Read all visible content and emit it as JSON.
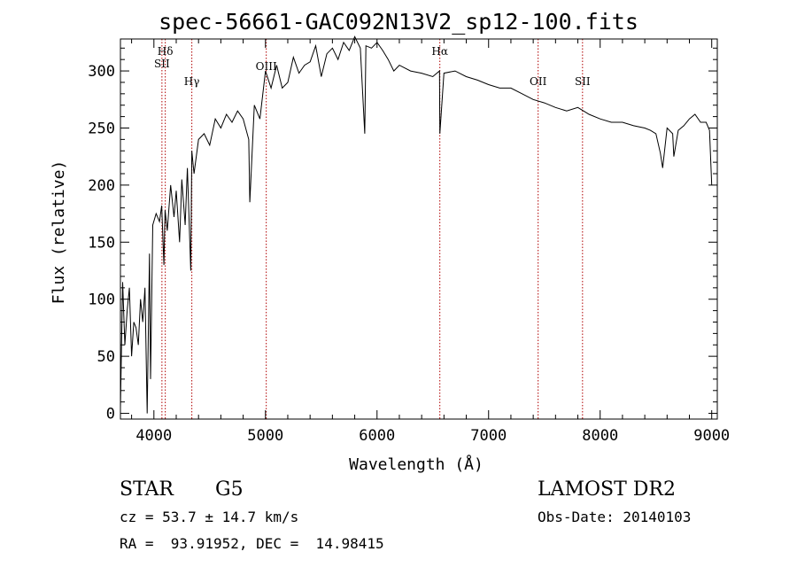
{
  "chart_data": {
    "type": "line",
    "title": "spec-56661-GAC092N13V2_sp12-100.fits",
    "xlabel": "Wavelength (Å)",
    "ylabel": "Flux (relative)",
    "xlim": [
      3700,
      9050
    ],
    "ylim": [
      -5,
      328
    ],
    "x_ticks": [
      4000,
      5000,
      6000,
      7000,
      8000,
      9000
    ],
    "y_ticks": [
      0,
      50,
      100,
      150,
      200,
      250,
      300
    ],
    "grid": false,
    "series": [
      {
        "x": [
          3700,
          3720,
          3740,
          3760,
          3780,
          3800,
          3820,
          3840,
          3860,
          3880,
          3900,
          3920,
          3940,
          3960,
          3970,
          3990,
          4020,
          4050,
          4070,
          4090,
          4100,
          4120,
          4150,
          4180,
          4200,
          4230,
          4250,
          4280,
          4300,
          4330,
          4340,
          4360,
          4400,
          4450,
          4500,
          4550,
          4600,
          4650,
          4700,
          4750,
          4800,
          4850,
          4860,
          4900,
          4950,
          5000,
          5050,
          5100,
          5150,
          5200,
          5250,
          5300,
          5350,
          5400,
          5450,
          5500,
          5550,
          5600,
          5650,
          5700,
          5750,
          5800,
          5850,
          5890,
          5900,
          5950,
          6000,
          6050,
          6100,
          6150,
          6200,
          6300,
          6400,
          6500,
          6560,
          6563,
          6600,
          6700,
          6800,
          6900,
          7000,
          7100,
          7200,
          7300,
          7400,
          7500,
          7600,
          7700,
          7800,
          7900,
          8000,
          8100,
          8200,
          8300,
          8400,
          8450,
          8500,
          8540,
          8560,
          8600,
          8650,
          8660,
          8700,
          8750,
          8800,
          8850,
          8900,
          8950,
          8980,
          9000
        ],
        "y": [
          5,
          115,
          60,
          90,
          110,
          50,
          80,
          75,
          60,
          100,
          80,
          110,
          0,
          140,
          30,
          165,
          175,
          168,
          182,
          130,
          178,
          160,
          200,
          172,
          195,
          150,
          205,
          165,
          215,
          125,
          230,
          210,
          240,
          245,
          235,
          258,
          250,
          262,
          255,
          265,
          258,
          240,
          185,
          270,
          258,
          300,
          285,
          305,
          285,
          290,
          312,
          298,
          305,
          308,
          322,
          295,
          315,
          320,
          310,
          325,
          318,
          330,
          320,
          245,
          322,
          320,
          325,
          318,
          310,
          300,
          305,
          300,
          298,
          295,
          300,
          245,
          298,
          300,
          295,
          292,
          288,
          285,
          285,
          280,
          275,
          272,
          268,
          265,
          268,
          262,
          258,
          255,
          255,
          252,
          250,
          248,
          245,
          228,
          215,
          250,
          245,
          225,
          248,
          252,
          258,
          262,
          255,
          255,
          248,
          200
        ]
      }
    ],
    "line_markers": [
      {
        "x": 4102,
        "label": "Hδ"
      },
      {
        "x": 4072,
        "label": "SII"
      },
      {
        "x": 4340,
        "label": "Hγ"
      },
      {
        "x": 5007,
        "label": "OIII"
      },
      {
        "x": 6563,
        "label": "Hα"
      },
      {
        "x": 7444,
        "label": "OII"
      },
      {
        "x": 7842,
        "label": "SII"
      }
    ]
  },
  "info": {
    "class": "STAR",
    "subclass": "G5",
    "cz": "cz = 53.7 ± 14.7 km/s",
    "coords": "RA =  93.91952, DEC =  14.98415",
    "survey": "LAMOST DR2",
    "obsdate": "Obs-Date: 20140103"
  },
  "colors": {
    "spectrum": "#000000",
    "marker": "#b00000",
    "axes": "#000000"
  }
}
